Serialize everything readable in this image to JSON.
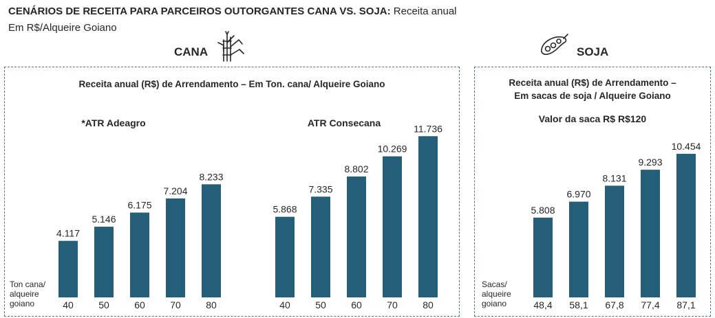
{
  "header": {
    "title_bold": "CENÁRIOS DE RECEITA PARA PARCEIROS OUTORGANTES CANA VS. SOJA:",
    "title_rest": " Receita anual",
    "subtitle": "Em R$/Alqueire Goiano"
  },
  "sections": {
    "cana": {
      "label": "CANA",
      "icon": "sugarcane-icon"
    },
    "soja": {
      "label": "SOJA",
      "icon": "soybean-pod-icon"
    }
  },
  "panels": {
    "cana": {
      "title": "Receita anual (R$) de Arrendamento – Em Ton. cana/ Alqueire Goiano"
    },
    "soja": {
      "title_line1": "Receita anual (R$) de Arrendamento –",
      "title_line2": "Em sacas de soja / Alqueire Goiano",
      "note": "Valor da saca R$ R$120"
    }
  },
  "colors": {
    "bar": "#255e78",
    "text": "#262626",
    "border": "#5f6b7a"
  },
  "chart_data": [
    {
      "type": "bar",
      "title": "*ATR Adeagro",
      "xlabel": "Ton cana/ alqueire goiano",
      "xlabel_lines": [
        "Ton cana/",
        "alqueire",
        "goiano"
      ],
      "categories": [
        "40",
        "50",
        "60",
        "70",
        "80"
      ],
      "values": [
        4117,
        5146,
        6175,
        7204,
        8233
      ],
      "labels": [
        "4.117",
        "5.146",
        "6.175",
        "7.204",
        "8.233"
      ],
      "ylim": [
        0,
        12000
      ]
    },
    {
      "type": "bar",
      "title": "ATR Consecana",
      "xlabel": "",
      "xlabel_lines": [],
      "categories": [
        "40",
        "50",
        "60",
        "70",
        "80"
      ],
      "values": [
        5868,
        7335,
        8802,
        10269,
        11736
      ],
      "labels": [
        "5.868",
        "7.335",
        "8.802",
        "10.269",
        "11.736"
      ],
      "ylim": [
        0,
        12000
      ]
    },
    {
      "type": "bar",
      "title": "",
      "xlabel": "Sacas/ alqueire goiano",
      "xlabel_lines": [
        "Sacas/",
        "alqueire",
        "goiano"
      ],
      "categories": [
        "48,4",
        "58,1",
        "67,8",
        "77,4",
        "87,1"
      ],
      "values": [
        5808,
        6970,
        8131,
        9293,
        10454
      ],
      "labels": [
        "5.808",
        "6.970",
        "8.131",
        "9.293",
        "10.454"
      ],
      "ylim": [
        0,
        12000
      ]
    }
  ]
}
